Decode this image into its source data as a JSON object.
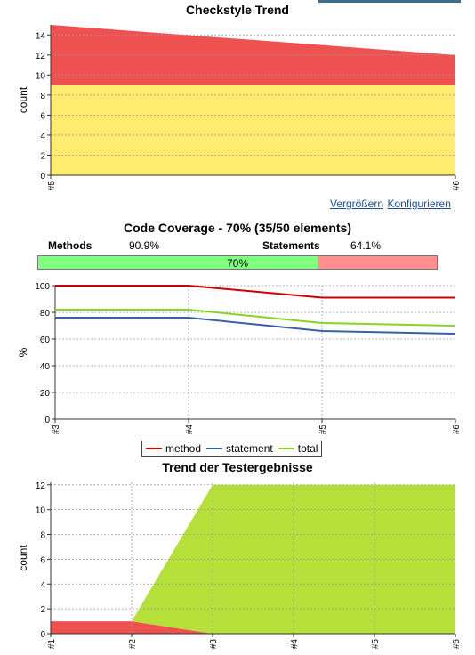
{
  "links": {
    "enlarge": "Vergrößern",
    "configure": "Konfigurieren"
  },
  "coverage": {
    "title": "Code Coverage - 70% (35/50 elements)",
    "methods_label": "Methods",
    "methods_value": "90.9%",
    "statements_label": "Statements",
    "statements_value": "64.1%",
    "bar_text": "70%",
    "bar_fraction": 0.7
  },
  "colors": {
    "red_area": "#ef5050",
    "yellow_area": "#fdec6f",
    "green_area": "#b5e03a",
    "method": "#cc0000",
    "statement": "#3a5fa8",
    "total": "#88d420",
    "bar_ok": "#80ff80",
    "bar_bad": "#ff9090",
    "link": "#1a4fa0"
  },
  "chart_data": [
    {
      "type": "area",
      "title": "Checkstyle Trend",
      "xlabel": "",
      "ylabel": "count",
      "x": [
        "#5",
        "#6"
      ],
      "ylim": [
        0,
        15
      ],
      "yticks": [
        0,
        2,
        4,
        6,
        8,
        10,
        12,
        14
      ],
      "grid": true,
      "series": [
        {
          "values": [
            9,
            9
          ],
          "color": "#fdec6f"
        },
        {
          "values": [
            6,
            3
          ],
          "color": "#ef5050"
        }
      ]
    },
    {
      "type": "line",
      "title": "",
      "xlabel": "",
      "ylabel": "%",
      "x": [
        "#3",
        "#4",
        "#5",
        "#6"
      ],
      "ylim": [
        0,
        100
      ],
      "yticks": [
        0,
        20,
        40,
        60,
        80,
        100
      ],
      "grid": true,
      "legend": "bottom",
      "series": [
        {
          "name": "method",
          "values": [
            100,
            100,
            91,
            91
          ],
          "color": "#cc0000"
        },
        {
          "name": "statement",
          "values": [
            76,
            76,
            66,
            64
          ],
          "color": "#3a5fa8"
        },
        {
          "name": "total",
          "values": [
            82,
            82,
            72,
            70
          ],
          "color": "#88d420"
        }
      ]
    },
    {
      "type": "area",
      "title": "Trend der Testergebnisse",
      "xlabel": "",
      "ylabel": "count",
      "x": [
        "#1",
        "#2",
        "#3",
        "#4",
        "#5",
        "#6"
      ],
      "ylim": [
        0,
        12.2
      ],
      "yticks": [
        0,
        2,
        4,
        6,
        8,
        10,
        12
      ],
      "grid": true,
      "series": [
        {
          "values": [
            1,
            1,
            0,
            0,
            0,
            0
          ],
          "color": "#ef5050"
        },
        {
          "values": [
            0,
            0,
            12,
            12,
            12,
            12
          ],
          "color": "#b5e03a"
        }
      ]
    }
  ]
}
